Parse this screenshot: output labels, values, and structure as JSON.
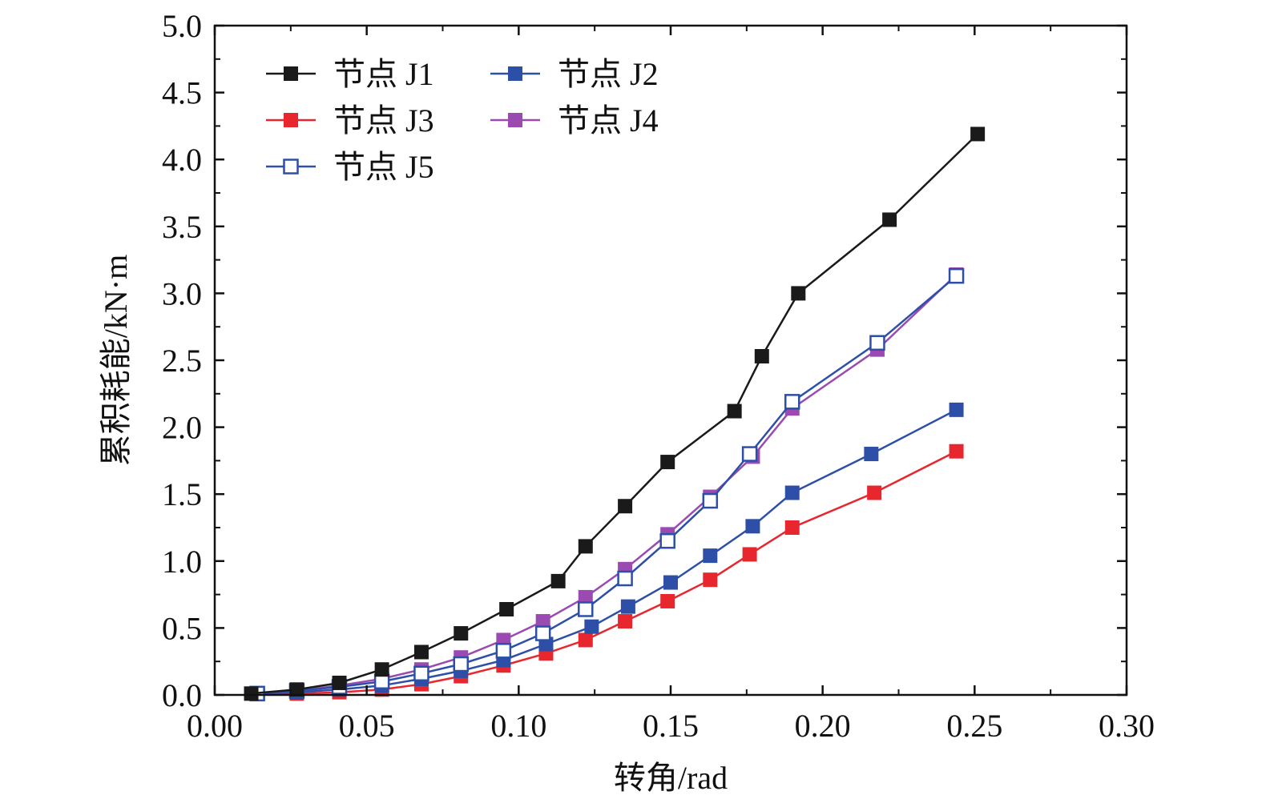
{
  "chart_data": {
    "type": "line",
    "xlabel": "转角/rad",
    "ylabel": "累积耗能/kN·m",
    "xlim": [
      0.0,
      0.3
    ],
    "ylim": [
      0.0,
      5.0
    ],
    "xticks": [
      "0.00",
      "0.05",
      "0.10",
      "0.15",
      "0.20",
      "0.25",
      "0.30"
    ],
    "yticks": [
      "0.0",
      "0.5",
      "1.0",
      "1.5",
      "2.0",
      "2.5",
      "3.0",
      "3.5",
      "4.0",
      "4.5",
      "5.0"
    ],
    "legend_position": "top-left",
    "series": [
      {
        "name": "节点 J1",
        "color": "#1a1a1a",
        "marker": "filled-square",
        "x": [
          0.012,
          0.027,
          0.041,
          0.055,
          0.068,
          0.081,
          0.096,
          0.113,
          0.122,
          0.135,
          0.149,
          0.171,
          0.18,
          0.192,
          0.222,
          0.251
        ],
        "y": [
          0.01,
          0.04,
          0.09,
          0.19,
          0.32,
          0.46,
          0.64,
          0.85,
          1.11,
          1.41,
          1.74,
          2.12,
          2.53,
          3.0,
          3.55,
          4.19
        ]
      },
      {
        "name": "节点 J2",
        "color": "#2d4fa8",
        "marker": "filled-square",
        "x": [
          0.014,
          0.027,
          0.041,
          0.055,
          0.068,
          0.081,
          0.095,
          0.109,
          0.124,
          0.136,
          0.15,
          0.163,
          0.177,
          0.19,
          0.216,
          0.244
        ],
        "y": [
          0.01,
          0.02,
          0.04,
          0.07,
          0.12,
          0.18,
          0.26,
          0.38,
          0.51,
          0.66,
          0.84,
          1.04,
          1.26,
          1.51,
          1.8,
          2.13
        ]
      },
      {
        "name": "节点 J3",
        "color": "#e8262e",
        "marker": "filled-square",
        "x": [
          0.014,
          0.027,
          0.041,
          0.055,
          0.068,
          0.081,
          0.095,
          0.109,
          0.122,
          0.135,
          0.149,
          0.163,
          0.176,
          0.19,
          0.217,
          0.244
        ],
        "y": [
          0.01,
          0.01,
          0.02,
          0.04,
          0.08,
          0.14,
          0.22,
          0.31,
          0.41,
          0.55,
          0.7,
          0.86,
          1.05,
          1.25,
          1.51,
          1.82
        ]
      },
      {
        "name": "节点 J4",
        "color": "#9a4ab0",
        "marker": "filled-square",
        "x": [
          0.014,
          0.027,
          0.041,
          0.055,
          0.068,
          0.081,
          0.095,
          0.108,
          0.122,
          0.135,
          0.149,
          0.163,
          0.177,
          0.19,
          0.218,
          0.244
        ],
        "y": [
          0.01,
          0.03,
          0.07,
          0.12,
          0.19,
          0.28,
          0.41,
          0.55,
          0.73,
          0.94,
          1.2,
          1.48,
          1.78,
          2.14,
          2.58,
          3.14
        ]
      },
      {
        "name": "节点 J5",
        "color": "#2d4fa8",
        "marker": "open-square",
        "x": [
          0.014,
          0.027,
          0.041,
          0.055,
          0.068,
          0.081,
          0.095,
          0.108,
          0.122,
          0.135,
          0.149,
          0.163,
          0.176,
          0.19,
          0.218,
          0.244
        ],
        "y": [
          0.01,
          0.03,
          0.06,
          0.1,
          0.16,
          0.23,
          0.33,
          0.46,
          0.64,
          0.87,
          1.15,
          1.45,
          1.8,
          2.19,
          2.63,
          3.13
        ]
      }
    ]
  }
}
